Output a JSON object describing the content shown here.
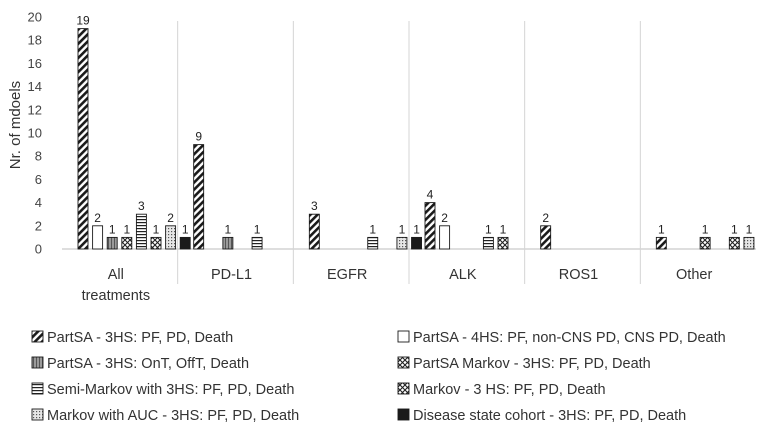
{
  "chart_data": {
    "type": "bar",
    "title": "",
    "xlabel": "",
    "ylabel": "Nr. of mdoels",
    "ylim": [
      0,
      20
    ],
    "yticks": [
      0,
      2,
      4,
      6,
      8,
      10,
      12,
      14,
      16,
      18,
      20
    ],
    "categories": [
      [
        "All",
        "treatments"
      ],
      [
        "PD-L1"
      ],
      [
        "EGFR"
      ],
      [
        "ALK"
      ],
      [
        "ROS1"
      ],
      [
        "Other"
      ]
    ],
    "legend_position": "bottom",
    "series": [
      {
        "name": "PartSA - 3HS: PF, PD, Death",
        "pattern": "diag",
        "values": [
          19,
          9,
          3,
          4,
          2,
          1
        ]
      },
      {
        "name": "PartSA - 4HS: PF, non-CNS PD, CNS PD, Death",
        "pattern": "empty",
        "values": [
          2,
          0,
          0,
          2,
          0,
          0
        ]
      },
      {
        "name": "PartSA - 3HS: OnT, OffT, Death",
        "pattern": "vgray",
        "values": [
          1,
          1,
          0,
          0,
          0,
          0
        ]
      },
      {
        "name": "PartSA Markov - 3HS: PF, PD, Death",
        "pattern": "cross",
        "values": [
          1,
          0,
          0,
          0,
          0,
          1
        ]
      },
      {
        "name": "Semi-Markov with 3HS: PF, PD, Death",
        "pattern": "hlines",
        "values": [
          3,
          1,
          1,
          1,
          0,
          0
        ]
      },
      {
        "name": "Markov - 3 HS: PF, PD, Death",
        "pattern": "cross",
        "values": [
          1,
          0,
          0,
          1,
          0,
          1
        ]
      },
      {
        "name": "Markov with AUC - 3HS: PF, PD, Death",
        "pattern": "dots",
        "values": [
          2,
          0,
          1,
          0,
          0,
          1
        ]
      },
      {
        "name": "Disease state cohort - 3HS: PF, PD, Death",
        "pattern": "dark",
        "values": [
          1,
          0,
          1,
          0,
          0,
          0
        ]
      }
    ]
  }
}
